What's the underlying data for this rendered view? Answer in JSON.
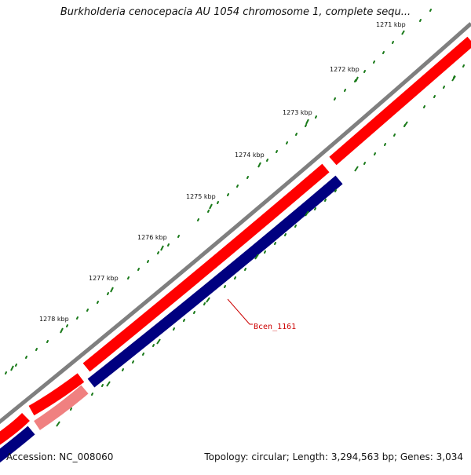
{
  "title": "Burkholderia cenocepacia AU 1054 chromosome 1, complete sequ...",
  "footer": {
    "accession": "Accession: NC_008060",
    "summary": "Topology: circular; Length: 3,294,563 bp; Genes: 3,034"
  },
  "ticks": [
    "1271 kbp",
    "1272 kbp",
    "1273 kbp",
    "1274 kbp",
    "1275 kbp",
    "1276 kbp",
    "1277 kbp",
    "1278 kbp"
  ],
  "gene_label": "Bcen_1161",
  "colors": {
    "backbone": "#7f7f7f",
    "plus_strand": "#ff0000",
    "minus_strand": "#000080",
    "selected": "#f08080",
    "tick": "#1a7a1a",
    "label": "#cc0000"
  }
}
